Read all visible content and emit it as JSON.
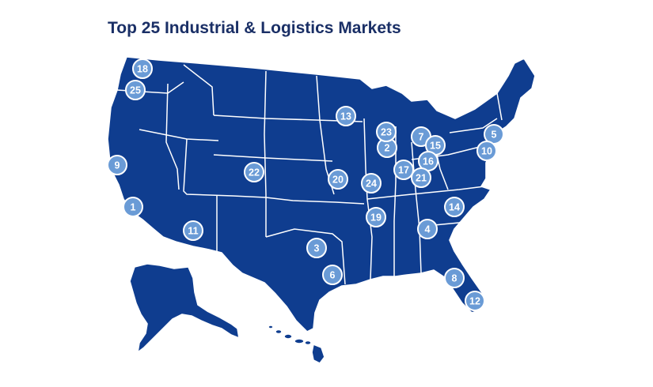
{
  "title": "Top 25 Industrial & Logistics Markets",
  "colors": {
    "map_fill": "#0f3d8f",
    "marker_fill": "#6a9bd6",
    "border": "#ffffff",
    "title": "#1a2f66"
  },
  "markers": [
    {
      "rank": "1"
    },
    {
      "rank": "2"
    },
    {
      "rank": "3"
    },
    {
      "rank": "4"
    },
    {
      "rank": "5"
    },
    {
      "rank": "6"
    },
    {
      "rank": "7"
    },
    {
      "rank": "8"
    },
    {
      "rank": "9"
    },
    {
      "rank": "10"
    },
    {
      "rank": "11"
    },
    {
      "rank": "12"
    },
    {
      "rank": "13"
    },
    {
      "rank": "14"
    },
    {
      "rank": "15"
    },
    {
      "rank": "16"
    },
    {
      "rank": "17"
    },
    {
      "rank": "18"
    },
    {
      "rank": "19"
    },
    {
      "rank": "20"
    },
    {
      "rank": "21"
    },
    {
      "rank": "22"
    },
    {
      "rank": "23"
    },
    {
      "rank": "24"
    },
    {
      "rank": "25"
    }
  ]
}
